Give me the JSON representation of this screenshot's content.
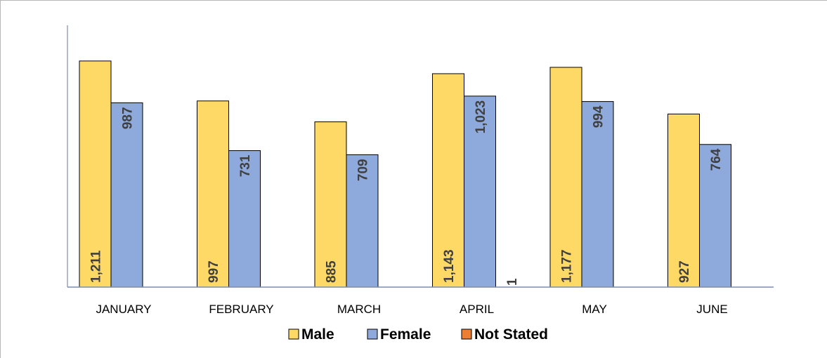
{
  "chart_data": {
    "type": "bar",
    "categories": [
      "JANUARY",
      "FEBRUARY",
      "MARCH",
      "APRIL",
      "MAY",
      "JUNE"
    ],
    "series": [
      {
        "name": "Male",
        "color": "#FFD966",
        "values": [
          1211,
          997,
          885,
          1143,
          1177,
          927
        ],
        "labels": [
          "1,211",
          "997",
          "885",
          "1,143",
          "1,177",
          "927"
        ]
      },
      {
        "name": "Female",
        "color": "#8EA9DB",
        "values": [
          987,
          731,
          709,
          1023,
          994,
          764
        ],
        "labels": [
          "987",
          "731",
          "709",
          "1,023",
          "994",
          "764"
        ]
      },
      {
        "name": "Not Stated",
        "color": "#ED7D31",
        "values": [
          null,
          null,
          null,
          1,
          null,
          null
        ],
        "labels": [
          "",
          "",
          "",
          "1",
          "",
          ""
        ]
      }
    ],
    "ylim": [
      0,
      1300
    ],
    "grid": false,
    "legend_position": "bottom",
    "title": "",
    "xlabel": "",
    "ylabel": ""
  }
}
